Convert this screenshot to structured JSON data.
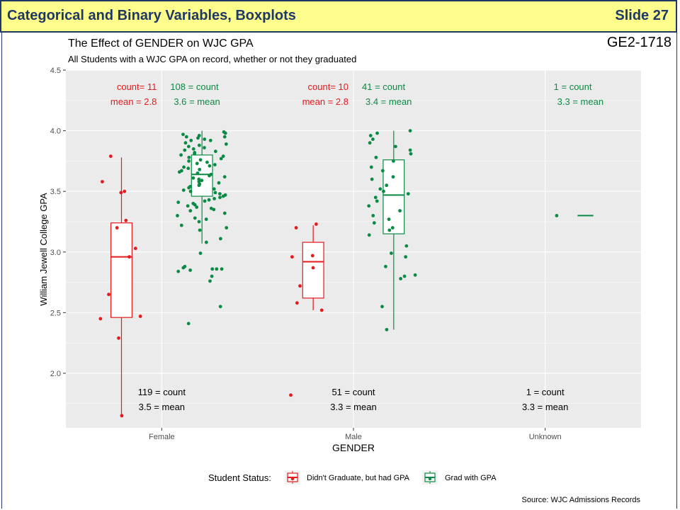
{
  "slide": {
    "title": "Categorical and Binary Variables, Boxplots",
    "slide_number": "Slide 27",
    "code": "GE2-1718"
  },
  "colors": {
    "not_graduated": "#e41a1c",
    "graduated": "#0b8a43",
    "panel": "#ebebeb",
    "banner": "#fdfd8c",
    "banner_text": "#1f3864"
  },
  "chart_data": {
    "type": "boxplot",
    "title": "The Effect of GENDER on WJC GPA",
    "subtitle": "All Students with a WJC GPA on record, whether or not they graduated",
    "xlabel": "GENDER",
    "ylabel": "William Jewell College GPA",
    "ylim": [
      1.55,
      4.5
    ],
    "yticks": [
      "2.0",
      "2.5",
      "3.0",
      "3.5",
      "4.0",
      "4.5"
    ],
    "categories": [
      "Female",
      "Male",
      "Unknown"
    ],
    "legend": {
      "title": "Student Status:",
      "position": "bottom",
      "entries": [
        "Didn't Graduate, but had GPA",
        "Grad with GPA"
      ]
    },
    "caption": "Source: WJC Admissions Records",
    "series": [
      {
        "name": "Didn't Graduate, but had GPA",
        "boxes": [
          {
            "category": "Female",
            "min": 1.65,
            "q1": 2.46,
            "median": 2.96,
            "q3": 3.24,
            "max": 3.78
          },
          {
            "category": "Male",
            "min": 2.52,
            "q1": 2.62,
            "median": 2.92,
            "q3": 3.08,
            "max": 3.22
          },
          null
        ],
        "points": [
          {
            "category": "Female",
            "y": [
              3.49,
              3.5,
              3.58,
              2.65,
              2.29,
              1.65,
              2.45,
              2.47,
              3.26,
              3.2,
              3.79,
              3.03,
              2.96
            ]
          },
          {
            "category": "Male",
            "y": [
              2.96,
              2.87,
              2.72,
              2.52,
              3.2,
              3.23,
              2.97,
              2.58,
              1.82
            ]
          }
        ],
        "annotations": [
          {
            "category": "Female",
            "count": "count= 11",
            "mean": "mean = 2.8"
          },
          {
            "category": "Male",
            "count": "count= 10",
            "mean": "mean = 2.8"
          }
        ]
      },
      {
        "name": "Grad with GPA",
        "boxes": [
          {
            "category": "Female",
            "min": 3.07,
            "q1": 3.46,
            "median": 3.64,
            "q3": 3.8,
            "max": 4.0
          },
          {
            "category": "Male",
            "min": 2.36,
            "q1": 3.15,
            "median": 3.47,
            "q3": 3.76,
            "max": 4.0
          },
          {
            "category": "Unknown",
            "min": 3.3,
            "q1": 3.3,
            "median": 3.3,
            "q3": 3.3,
            "max": 3.3
          }
        ],
        "points": [
          {
            "category": "Female",
            "y": [
              3.99,
              3.98,
              3.97,
              3.96,
              3.95,
              3.95,
              3.94,
              3.93,
              3.92,
              3.92,
              3.9,
              3.89,
              3.88,
              3.87,
              3.86,
              3.85,
              3.84,
              3.83,
              3.82,
              3.81,
              3.8,
              3.79,
              3.78,
              3.77,
              3.76,
              3.75,
              3.74,
              3.73,
              3.72,
              3.71,
              3.7,
              3.69,
              3.68,
              3.67,
              3.66,
              3.65,
              3.64,
              3.63,
              3.62,
              3.61,
              3.6,
              3.59,
              3.58,
              3.57,
              3.56,
              3.55,
              3.54,
              3.53,
              3.52,
              3.51,
              3.5,
              3.49,
              3.48,
              3.47,
              3.46,
              3.45,
              3.44,
              3.43,
              3.42,
              3.41,
              3.4,
              3.39,
              3.38,
              3.37,
              3.36,
              3.35,
              3.34,
              3.32,
              3.3,
              3.28,
              3.27,
              3.25,
              3.22,
              3.2,
              3.18,
              3.11,
              3.08,
              2.99,
              2.87,
              2.86,
              2.86,
              2.85,
              2.84,
              2.88,
              2.86,
              2.8,
              2.76,
              2.55,
              2.41
            ]
          },
          {
            "category": "Male",
            "y": [
              4.0,
              3.98,
              3.96,
              3.93,
              3.9,
              3.87,
              3.84,
              3.81,
              3.78,
              3.75,
              3.7,
              3.67,
              3.62,
              3.6,
              3.55,
              3.52,
              3.5,
              3.48,
              3.45,
              3.42,
              3.38,
              3.34,
              3.3,
              3.27,
              3.24,
              3.2,
              3.18,
              3.14,
              3.05,
              2.99,
              2.96,
              2.88,
              2.81,
              2.8,
              2.78,
              2.55,
              2.36
            ]
          },
          {
            "category": "Unknown",
            "y": [
              3.3
            ]
          }
        ],
        "annotations": [
          {
            "category": "Female",
            "count": "108 = count",
            "mean": "3.6 = mean"
          },
          {
            "category": "Male",
            "count": "41 = count",
            "mean": "3.4 = mean"
          },
          {
            "category": "Unknown",
            "count": "1 = count",
            "mean": "3.3 = mean"
          }
        ]
      }
    ],
    "totals": [
      {
        "category": "Female",
        "count": "119 = count",
        "mean": "3.5 = mean"
      },
      {
        "category": "Male",
        "count": "51 = count",
        "mean": "3.3 = mean"
      },
      {
        "category": "Unknown",
        "count": "1 = count",
        "mean": "3.3 = mean"
      }
    ]
  }
}
